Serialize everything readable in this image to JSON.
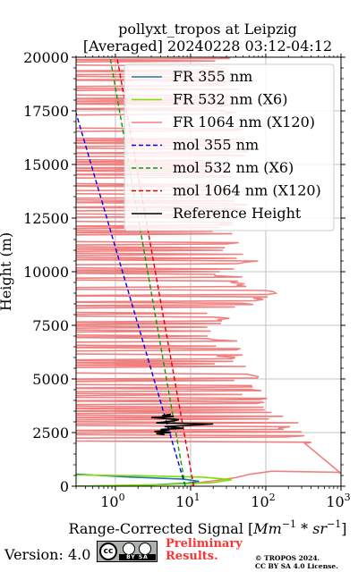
{
  "chart_data": {
    "type": "line",
    "title": "pollyxt_tropos at Leipzig",
    "subtitle": "[Averaged] 20240228 03:12-04:12",
    "xlabel_prefix": "Range-Corrected Signal [",
    "xlabel_math": "Mm",
    "xlabel_exp1": "−1",
    "xlabel_mid": " * ",
    "xlabel_math2": "sr",
    "xlabel_exp2": "−1",
    "xlabel_suffix": "]",
    "ylabel": "Height (m)",
    "xscale": "log",
    "xlim": [
      0.3,
      1000
    ],
    "ylim": [
      0,
      20000
    ],
    "grid": true,
    "legend_position": "top-right",
    "x_ticks": [
      {
        "value": 1,
        "base": "10",
        "exp": "0"
      },
      {
        "value": 10,
        "base": "10",
        "exp": "1"
      },
      {
        "value": 100,
        "base": "10",
        "exp": "2"
      },
      {
        "value": 1000,
        "base": "10",
        "exp": "3"
      }
    ],
    "y_ticks": [
      0,
      2500,
      5000,
      7500,
      10000,
      12500,
      15000,
      17500,
      20000
    ],
    "y_tick_labels": [
      "0",
      "2500",
      "5000",
      "7500",
      "10000",
      "12500",
      "15000",
      "17500",
      "20000"
    ],
    "series": [
      {
        "name": "FR 355 nm",
        "color": "#1f77b4",
        "style": "solid",
        "x": [
          0.3,
          3,
          9,
          13,
          8,
          1.5,
          0.3
        ],
        "y": [
          0,
          60,
          140,
          230,
          330,
          430,
          560
        ]
      },
      {
        "name": "FR 532 nm (X6)",
        "color": "#7fe000",
        "style": "solid",
        "x": [
          0.3,
          5,
          20,
          35,
          15,
          2,
          0.3
        ],
        "y": [
          0,
          80,
          170,
          300,
          420,
          490,
          520
        ]
      },
      {
        "name": "FR 1064 nm (X120)",
        "color": "#f08080",
        "style": "solid",
        "noisy": true,
        "x": [
          10,
          12,
          20,
          40,
          60,
          120,
          900,
          1000,
          100,
          30,
          25,
          22,
          80,
          30,
          25,
          60,
          30,
          20,
          35,
          20,
          25,
          40,
          25,
          22,
          30,
          20,
          25
        ],
        "y": [
          0,
          150,
          250,
          400,
          550,
          700,
          650,
          600,
          3500,
          6000,
          7000,
          8000,
          9000,
          9500,
          10000,
          10500,
          11000,
          12000,
          13000,
          14000,
          15000,
          16000,
          17000,
          18000,
          18500,
          19000,
          20000
        ]
      },
      {
        "name": "mol 355 nm",
        "color": "#0000ee",
        "style": "dashed",
        "x": [
          8.5,
          0.3
        ],
        "y": [
          0,
          17400
        ]
      },
      {
        "name": "mol 532 nm (X6)",
        "color": "#00a000",
        "style": "dashed",
        "x": [
          8.5,
          0.85
        ],
        "y": [
          0,
          20000
        ]
      },
      {
        "name": "mol 1064 nm (X120)",
        "color": "#dd0000",
        "style": "dashed",
        "x": [
          11,
          1.05
        ],
        "y": [
          0,
          20000
        ]
      },
      {
        "name": "Reference Height",
        "color": "#000000",
        "style": "solid",
        "x": [
          4.5,
          3.5,
          5.5,
          3.3,
          5,
          4,
          8,
          4.5,
          20,
          3.5,
          6,
          7,
          5,
          3,
          6,
          4.2,
          5.5
        ],
        "y": [
          2400,
          2450,
          2500,
          2550,
          2600,
          2650,
          2700,
          2780,
          2900,
          2950,
          3050,
          3100,
          3150,
          3200,
          3250,
          3300,
          3350
        ]
      }
    ]
  },
  "footer": {
    "version": "Version: 4.0",
    "cc_badge_text": "BY  SA",
    "preliminary_line1": "Preliminary",
    "preliminary_line2": "Results.",
    "copyright_line1": "© TROPOS 2024.",
    "copyright_line2": "CC BY SA 4.0 License."
  }
}
